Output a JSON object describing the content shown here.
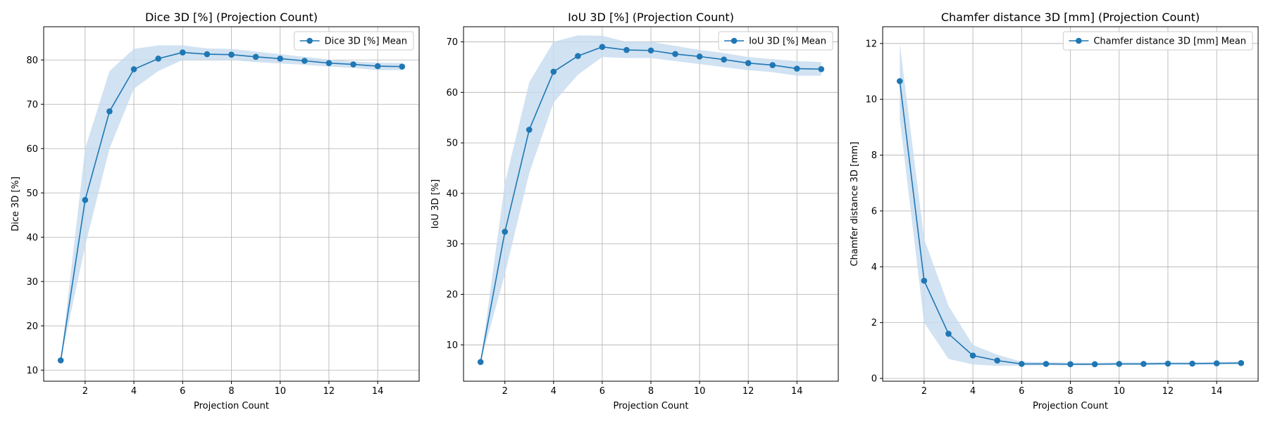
{
  "chart_data": [
    {
      "type": "line",
      "title": "Dice 3D [%] (Projection Count)",
      "xlabel": "Projection Count",
      "ylabel": "Dice 3D [%]",
      "xlim": [
        0.3,
        15.7
      ],
      "ylim": [
        7.5,
        87.5
      ],
      "xticks": [
        2,
        4,
        6,
        8,
        10,
        12,
        14
      ],
      "yticks": [
        10,
        20,
        30,
        40,
        50,
        60,
        70,
        80
      ],
      "grid": true,
      "legend_position": "top-right",
      "color": "#1f77b4",
      "band_color": "#c6dbef",
      "series": [
        {
          "name": "Dice 3D [%] Mean",
          "x": [
            1,
            2,
            3,
            4,
            5,
            6,
            7,
            8,
            9,
            10,
            11,
            12,
            13,
            14,
            15
          ],
          "values": [
            12.2,
            48.4,
            68.4,
            77.9,
            80.3,
            81.7,
            81.3,
            81.2,
            80.7,
            80.3,
            79.8,
            79.3,
            79.0,
            78.6,
            78.5
          ],
          "lower": [
            12.2,
            38.0,
            60.0,
            73.5,
            77.5,
            80.0,
            80.0,
            80.0,
            79.5,
            79.2,
            78.9,
            78.5,
            78.2,
            77.7,
            77.7
          ],
          "upper": [
            12.2,
            60.0,
            77.5,
            82.5,
            83.3,
            83.3,
            82.6,
            82.5,
            81.9,
            81.3,
            80.7,
            80.1,
            79.7,
            79.4,
            79.3
          ]
        }
      ]
    },
    {
      "type": "line",
      "title": "IoU 3D [%] (Projection Count)",
      "xlabel": "Projection Count",
      "ylabel": "IoU 3D [%]",
      "xlim": [
        0.3,
        15.7
      ],
      "ylim": [
        2.8,
        73.0
      ],
      "xticks": [
        2,
        4,
        6,
        8,
        10,
        12,
        14
      ],
      "yticks": [
        10,
        20,
        30,
        40,
        50,
        60,
        70
      ],
      "grid": true,
      "legend_position": "top-right",
      "color": "#1f77b4",
      "band_color": "#c6dbef",
      "series": [
        {
          "name": "IoU 3D [%] Mean",
          "x": [
            1,
            2,
            3,
            4,
            5,
            6,
            7,
            8,
            9,
            10,
            11,
            12,
            13,
            14,
            15
          ],
          "values": [
            6.6,
            32.4,
            52.6,
            64.1,
            67.2,
            69.0,
            68.4,
            68.3,
            67.6,
            67.1,
            66.5,
            65.8,
            65.4,
            64.7,
            64.6
          ],
          "lower": [
            6.6,
            24.0,
            44.0,
            58.0,
            63.5,
            67.0,
            66.8,
            66.8,
            66.2,
            65.6,
            65.0,
            64.4,
            64.0,
            63.3,
            63.3
          ],
          "upper": [
            6.6,
            42.0,
            62.0,
            70.0,
            71.3,
            71.2,
            70.0,
            70.0,
            69.2,
            68.4,
            67.8,
            67.0,
            66.6,
            66.2,
            66.0
          ]
        }
      ]
    },
    {
      "type": "line",
      "title": "Chamfer distance 3D [mm] (Projection Count)",
      "xlabel": "Projection Count",
      "ylabel": "Chamfer distance 3D [mm]",
      "xlim": [
        0.3,
        15.7
      ],
      "ylim": [
        -0.1,
        12.6
      ],
      "xticks": [
        2,
        4,
        6,
        8,
        10,
        12,
        14
      ],
      "yticks": [
        0,
        2,
        4,
        6,
        8,
        10,
        12
      ],
      "grid": true,
      "legend_position": "top-right",
      "color": "#1f77b4",
      "band_color": "#c6dbef",
      "series": [
        {
          "name": "Chamfer distance 3D [mm] Mean",
          "x": [
            1,
            2,
            3,
            4,
            5,
            6,
            7,
            8,
            9,
            10,
            11,
            12,
            13,
            14,
            15
          ],
          "values": [
            10.65,
            3.5,
            1.6,
            0.82,
            0.64,
            0.52,
            0.52,
            0.51,
            0.51,
            0.52,
            0.52,
            0.53,
            0.53,
            0.54,
            0.55
          ],
          "lower": [
            9.3,
            2.0,
            0.7,
            0.5,
            0.45,
            0.46,
            0.47,
            0.47,
            0.47,
            0.48,
            0.48,
            0.49,
            0.49,
            0.5,
            0.5
          ],
          "upper": [
            12.0,
            5.0,
            2.6,
            1.2,
            0.85,
            0.6,
            0.58,
            0.57,
            0.56,
            0.57,
            0.57,
            0.58,
            0.58,
            0.59,
            0.6
          ]
        }
      ]
    }
  ]
}
